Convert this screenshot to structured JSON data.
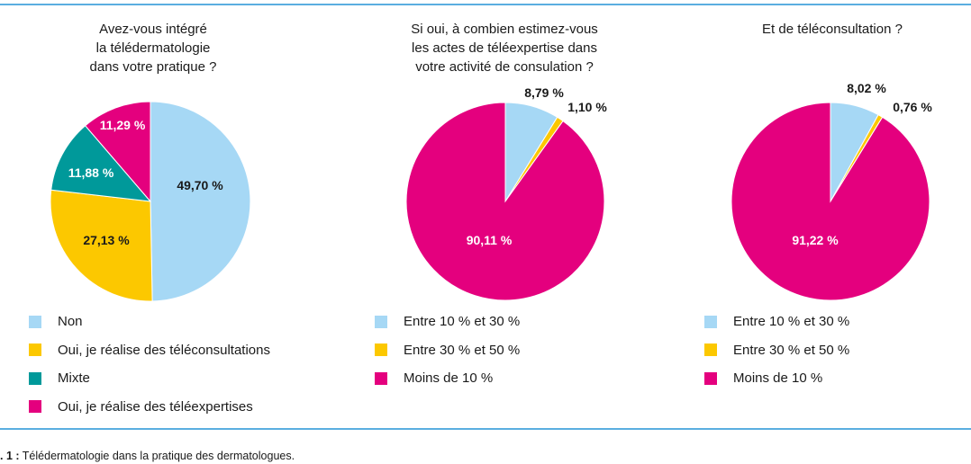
{
  "colors": {
    "light_blue": "#a6d8f5",
    "yellow": "#fcc800",
    "teal": "#00999a",
    "magenta": "#e4007e",
    "rule": "#5aaee0"
  },
  "chart_data": [
    {
      "type": "pie",
      "title": "Avez-vous intégré\nla télédermatologie\ndans votre pratique ?",
      "slices": [
        {
          "label": "Non",
          "value": 49.7,
          "display": "49,70 %",
          "color": "#a6d8f5"
        },
        {
          "label": "Oui, je réalise des téléconsultations",
          "value": 27.13,
          "display": "27,13 %",
          "color": "#fcc800"
        },
        {
          "label": "Mixte",
          "value": 11.88,
          "display": "11,88 %",
          "color": "#00999a"
        },
        {
          "label": "Oui, je réalise des téléexpertises",
          "value": 11.29,
          "display": "11,29 %",
          "color": "#e4007e"
        }
      ]
    },
    {
      "type": "pie",
      "title": "Si oui, à combien estimez-vous\nles actes de téléexpertise dans\nvotre activité de consulation ?",
      "slices": [
        {
          "label": "Entre 10 % et 30 %",
          "value": 8.79,
          "display": "8,79 %",
          "color": "#a6d8f5"
        },
        {
          "label": "Entre 30 % et 50 %",
          "value": 1.1,
          "display": "1,10 %",
          "color": "#fcc800"
        },
        {
          "label": "Moins de 10 %",
          "value": 90.11,
          "display": "90,11 %",
          "color": "#e4007e"
        }
      ]
    },
    {
      "type": "pie",
      "title": "Et de téléconsultation ?",
      "slices": [
        {
          "label": "Entre 10 % et 30 %",
          "value": 8.02,
          "display": "8,02 %",
          "color": "#a6d8f5"
        },
        {
          "label": "Entre 30 % et 50 %",
          "value": 0.76,
          "display": "0,76 %",
          "color": "#fcc800"
        },
        {
          "label": "Moins de 10 %",
          "value": 91.22,
          "display": "91,22 %",
          "color": "#e4007e"
        }
      ]
    }
  ],
  "caption": {
    "prefix": ". 1 :",
    "text": "Télédermatologie dans la pratique des dermatologues."
  }
}
